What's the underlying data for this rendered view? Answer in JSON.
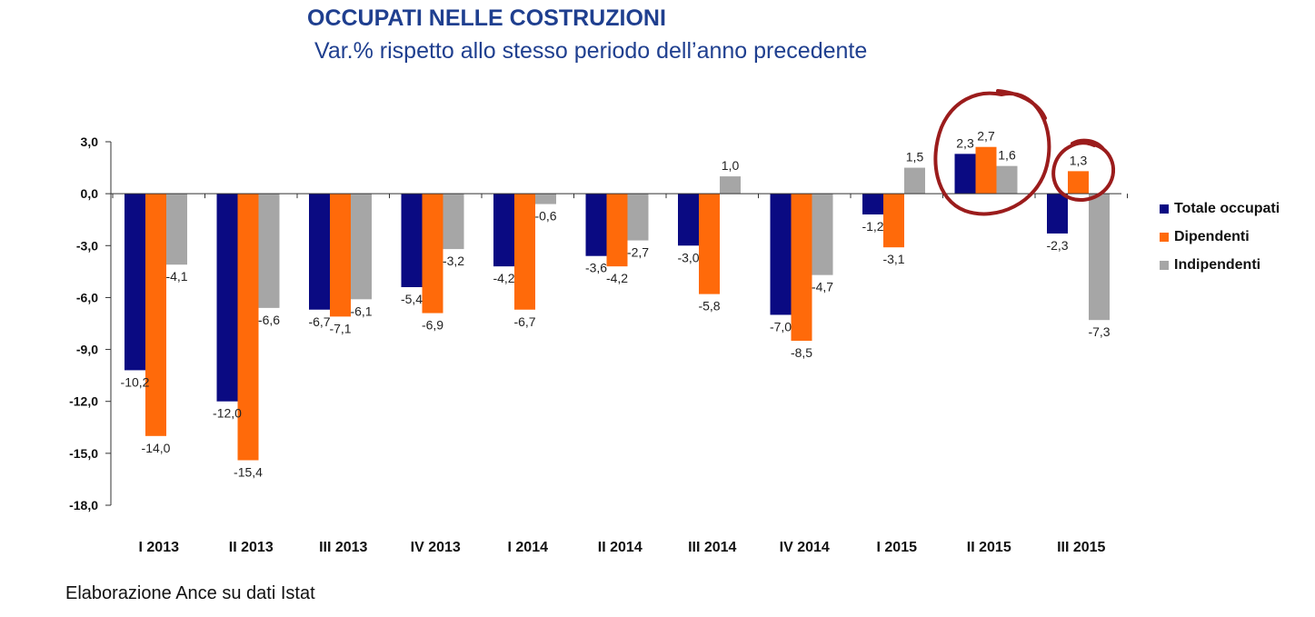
{
  "title": "OCCUPATI NELLE COSTRUZIONI",
  "subtitle": "Var.% rispetto allo stesso periodo dell’anno precedente",
  "source": "Elaborazione Ance su dati Istat",
  "colors": {
    "totale": "#0a0a82",
    "dipendenti": "#ff6a0a",
    "indipendenti": "#a6a6a6",
    "highlight": "#9b1c1c",
    "title": "#1f3f8f"
  },
  "chart_data": {
    "type": "bar",
    "categories": [
      "I 2013",
      "II 2013",
      "III 2013",
      "IV 2013",
      "I 2014",
      "II 2014",
      "III 2014",
      "IV 2014",
      "I 2015",
      "II 2015",
      "III 2015"
    ],
    "series": [
      {
        "name": "Totale occupati",
        "values": [
          -10.2,
          -12.0,
          -6.7,
          -5.4,
          -4.2,
          -3.6,
          -3.0,
          -7.0,
          -1.2,
          2.3,
          -2.3
        ]
      },
      {
        "name": "Dipendenti",
        "values": [
          -14.0,
          -15.4,
          -7.1,
          -6.9,
          -6.7,
          -4.2,
          -5.8,
          -8.5,
          -3.1,
          2.7,
          1.3
        ]
      },
      {
        "name": "Indipendenti",
        "values": [
          -4.1,
          -6.6,
          -6.1,
          -3.2,
          -0.6,
          -2.7,
          1.0,
          -4.7,
          1.5,
          1.6,
          -7.3
        ]
      }
    ],
    "data_labels": [
      [
        "-10,2",
        "-12,0",
        "-6,7",
        "-5,4",
        "-4,2",
        "-3,6",
        "-3,0",
        "-7,0",
        "-1,2",
        "2,3",
        "-2,3"
      ],
      [
        "-14,0",
        "-15,4",
        "-7,1",
        "-6,9",
        "-6,7",
        "-4,2",
        "-5,8",
        "-8,5",
        "-3,1",
        "2,7",
        "1,3"
      ],
      [
        "-4,1",
        "-6,6",
        "-6,1",
        "-3,2",
        "-0,6",
        "-2,7",
        "1,0",
        "-4,7",
        "1,5",
        "1,6",
        "-7,3"
      ]
    ],
    "ylim": [
      -18,
      3
    ],
    "yticks": [
      3,
      0,
      -3,
      -6,
      -9,
      -12,
      -15,
      -18
    ],
    "ytick_labels": [
      "3,0",
      "0,0",
      "-3,0",
      "-6,0",
      "-9,0",
      "-12,0",
      "-15,0",
      "-18,0"
    ],
    "legend_position": "right",
    "grid": false,
    "highlighted_categories": [
      "II 2015",
      "III 2015"
    ]
  }
}
